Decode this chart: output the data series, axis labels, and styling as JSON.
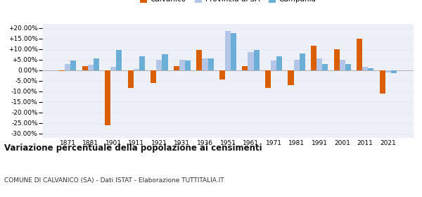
{
  "years": [
    1871,
    1881,
    1901,
    1911,
    1921,
    1931,
    1936,
    1951,
    1961,
    1971,
    1981,
    1991,
    2001,
    2011,
    2021
  ],
  "calvanico": [
    -0.5,
    2.0,
    -26.0,
    -8.5,
    -6.0,
    2.0,
    9.5,
    -4.5,
    2.0,
    -8.5,
    -7.0,
    11.5,
    10.0,
    15.0,
    -11.0
  ],
  "provincia_sa": [
    3.0,
    2.5,
    1.5,
    0.5,
    5.0,
    5.0,
    5.5,
    18.5,
    8.5,
    4.5,
    5.0,
    5.5,
    5.0,
    1.5,
    -1.0
  ],
  "campania": [
    4.5,
    5.5,
    9.5,
    6.5,
    7.5,
    4.5,
    5.5,
    17.5,
    9.5,
    6.5,
    8.0,
    3.0,
    3.0,
    1.0,
    -1.5
  ],
  "color_calvanico": "#d95f02",
  "color_provincia": "#b3c6e8",
  "color_campania": "#6baed6",
  "title": "Variazione percentuale della popolazione ai censimenti",
  "subtitle": "COMUNE DI CALVANICO (SA) - Dati ISTAT - Elaborazione TUTTITALIA.IT",
  "ylim": [
    -32,
    22
  ],
  "yticks": [
    -30,
    -25,
    -20,
    -15,
    -10,
    -5,
    0,
    5,
    10,
    15,
    20
  ],
  "background_color": "#ffffff",
  "grid_color": "#e8e8f0",
  "plot_bg": "#eef0f8"
}
